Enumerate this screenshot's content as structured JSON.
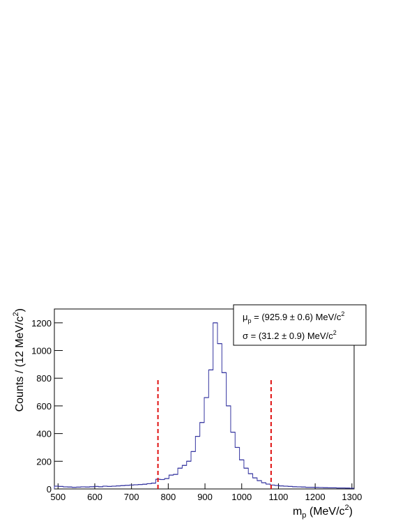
{
  "chart_data": {
    "type": "histogram",
    "x_label": {
      "main": "m",
      "sub": "p",
      "rest": " (MeV/c",
      "sup": "2",
      "end": ")"
    },
    "y_label": {
      "main": "Counts / (12 MeV/c",
      "sup": "2",
      "end": ")"
    },
    "bins": [
      490,
      502,
      514,
      526,
      538,
      550,
      562,
      574,
      586,
      598,
      610,
      622,
      634,
      646,
      658,
      670,
      682,
      694,
      706,
      718,
      730,
      742,
      754,
      766,
      778,
      790,
      802,
      814,
      826,
      838,
      850,
      862,
      874,
      886,
      898,
      910,
      922,
      934,
      946,
      958,
      970,
      982,
      994,
      1006,
      1018,
      1030,
      1042,
      1054,
      1066,
      1078,
      1090,
      1102,
      1114,
      1126,
      1138,
      1150,
      1162,
      1174,
      1186,
      1198,
      1210,
      1222,
      1234,
      1246,
      1258,
      1270,
      1282,
      1294,
      1306
    ],
    "counts": [
      20,
      18,
      15,
      14,
      12,
      13,
      15,
      14,
      16,
      18,
      16,
      20,
      18,
      20,
      22,
      24,
      26,
      28,
      30,
      32,
      34,
      38,
      42,
      70,
      68,
      75,
      100,
      105,
      150,
      170,
      200,
      270,
      380,
      480,
      660,
      860,
      1200,
      1050,
      840,
      600,
      410,
      300,
      210,
      150,
      110,
      80,
      60,
      45,
      35,
      28,
      25,
      22,
      20,
      18,
      16,
      15,
      14,
      12,
      12,
      11,
      10,
      9,
      8,
      8,
      7,
      7,
      6,
      5
    ],
    "color": "#3535a0",
    "xlim": [
      490,
      1306
    ],
    "ylim": [
      0,
      1300
    ],
    "xticks": [
      500,
      600,
      700,
      800,
      900,
      1000,
      1100,
      1200,
      1300
    ],
    "yticks": [
      0,
      200,
      400,
      600,
      800,
      1000,
      1200
    ],
    "cut_lines": {
      "x": [
        772,
        1080
      ],
      "y_top": 800,
      "color": "#e01010"
    },
    "stats": [
      {
        "symbol": "μ",
        "sub": "p",
        "text": " = (925.9 ± 0.6) MeV/c",
        "sup": "2"
      },
      {
        "symbol": "σ",
        "text": " = (31.2 ± 0.9) MeV/c",
        "sup": "2"
      }
    ]
  }
}
